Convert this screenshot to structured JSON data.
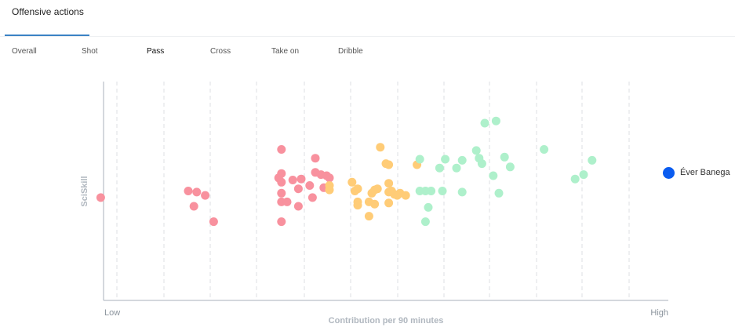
{
  "tabs": {
    "main": "Offensive actions",
    "sub": [
      "Overall",
      "Shot",
      "Pass",
      "Cross",
      "Take on",
      "Dribble"
    ],
    "active_sub": "Pass"
  },
  "player": {
    "name": "Éver Banega",
    "color": "#0a5cf0"
  },
  "colors": {
    "low": "#f8919e",
    "mid": "#ffcc77",
    "high": "#aef0cb",
    "axis": "#aab2bb",
    "grid": "#dcdfe3"
  },
  "chart_data": {
    "type": "scatter",
    "title": "",
    "xlabel": "Contribution per 90 minutes",
    "ylabel": "SciSkill",
    "x_tick_labels": [
      "Low",
      "High"
    ],
    "xlim": [
      0,
      100
    ],
    "ylim": [
      0,
      100
    ],
    "grid": "vertical dashed",
    "series": [
      {
        "color": "#f8919e",
        "points": [
          [
            -0.5,
            47
          ],
          [
            15,
            50
          ],
          [
            16.5,
            49.5
          ],
          [
            18,
            48
          ],
          [
            16,
            43
          ],
          [
            19.5,
            36
          ],
          [
            31.5,
            45
          ],
          [
            31.5,
            69
          ],
          [
            32.5,
            45
          ],
          [
            31.5,
            49
          ],
          [
            31.5,
            54
          ],
          [
            31,
            56
          ],
          [
            31.5,
            58
          ],
          [
            33.5,
            55
          ],
          [
            34.5,
            51
          ],
          [
            34.5,
            43
          ],
          [
            35,
            55.5
          ],
          [
            31.5,
            36
          ],
          [
            36.5,
            52.5
          ],
          [
            37.5,
            58.5
          ],
          [
            37.5,
            65
          ],
          [
            37,
            47
          ],
          [
            38.5,
            57.5
          ],
          [
            39.5,
            57
          ],
          [
            39,
            51.5
          ],
          [
            40,
            56
          ]
        ]
      },
      {
        "color": "#ffcc77",
        "points": [
          [
            40,
            52.5
          ],
          [
            40,
            50.5
          ],
          [
            44,
            54
          ],
          [
            45,
            51
          ],
          [
            44.5,
            50
          ],
          [
            45,
            45
          ],
          [
            45,
            43.5
          ],
          [
            47,
            45
          ],
          [
            47.5,
            49
          ],
          [
            47,
            38.5
          ],
          [
            48,
            50.5
          ],
          [
            48.5,
            51
          ],
          [
            48,
            44
          ],
          [
            49,
            70
          ],
          [
            50,
            62.5
          ],
          [
            50.5,
            62
          ],
          [
            50.5,
            53.5
          ],
          [
            50.5,
            49.5
          ],
          [
            51,
            50
          ],
          [
            50.5,
            44.5
          ],
          [
            51.5,
            48.5
          ],
          [
            52.5,
            49
          ],
          [
            52,
            48
          ],
          [
            53.5,
            48
          ],
          [
            55.5,
            62
          ]
        ]
      },
      {
        "color": "#aef0cb",
        "points": [
          [
            56,
            64.5
          ],
          [
            56,
            50
          ],
          [
            57,
            50
          ],
          [
            58,
            50
          ],
          [
            57.5,
            42.5
          ],
          [
            57,
            36
          ],
          [
            59.5,
            60.5
          ],
          [
            60,
            50
          ],
          [
            60.5,
            64.5
          ],
          [
            62.5,
            60.5
          ],
          [
            63.5,
            64
          ],
          [
            63.5,
            49.5
          ],
          [
            66,
            68.5
          ],
          [
            66.5,
            65
          ],
          [
            67,
            62.5
          ],
          [
            67.5,
            81
          ],
          [
            69,
            57
          ],
          [
            69.5,
            82
          ],
          [
            70,
            49
          ],
          [
            71,
            65.5
          ],
          [
            72,
            61
          ],
          [
            78,
            69
          ],
          [
            83.5,
            55.5
          ],
          [
            85,
            57.5
          ],
          [
            86.5,
            64
          ]
        ]
      }
    ]
  }
}
